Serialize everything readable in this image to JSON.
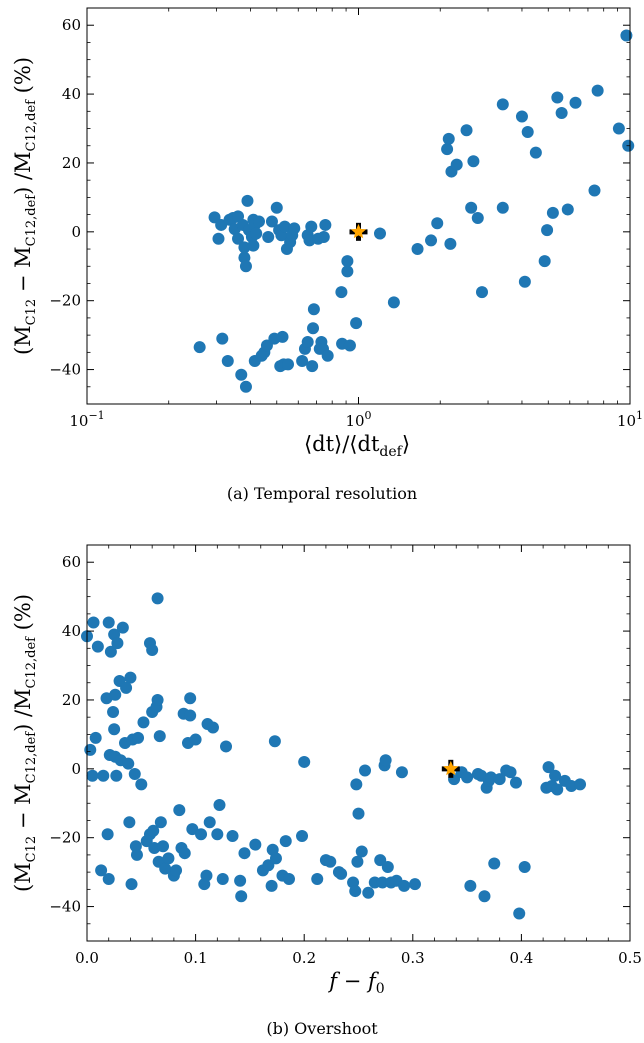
{
  "chart_data": [
    {
      "type": "scatter",
      "panel": "a",
      "caption": "(a) Temporal resolution",
      "xlabel": "⟨dt⟩/⟨dt_def⟩",
      "ylabel": "(M_C12 − M_C12,def) / M_C12,def (%)",
      "xscale": "log",
      "xlim": [
        0.1,
        10
      ],
      "ylim": [
        -50,
        65
      ],
      "xticks": [
        0.1,
        1,
        10
      ],
      "xtick_labels": [
        "10^−1",
        "10^0",
        "10^1"
      ],
      "yticks": [
        -40,
        -20,
        0,
        20,
        40,
        60
      ],
      "ytick_labels": [
        "−40",
        "−20",
        "0",
        "20",
        "40",
        "60"
      ],
      "grid": false,
      "marker_color": "#1f77b4",
      "reference_color": "#ffa500",
      "reference_point": {
        "x": 1.0,
        "y": 0
      },
      "series": [
        {
          "points": [
            [
              0.26,
              -33.5
            ],
            [
              0.295,
              4.2
            ],
            [
              0.305,
              -2.0
            ],
            [
              0.312,
              2.0
            ],
            [
              0.315,
              -31
            ],
            [
              0.33,
              -37.5
            ],
            [
              0.335,
              3.5
            ],
            [
              0.345,
              4.0
            ],
            [
              0.35,
              0.8
            ],
            [
              0.36,
              4.5
            ],
            [
              0.36,
              -2.0
            ],
            [
              0.37,
              -41.5
            ],
            [
              0.375,
              2.0
            ],
            [
              0.38,
              -7.5
            ],
            [
              0.38,
              -4.5
            ],
            [
              0.385,
              -10
            ],
            [
              0.385,
              -45
            ],
            [
              0.39,
              9.0
            ],
            [
              0.395,
              0.5
            ],
            [
              0.405,
              -1.5
            ],
            [
              0.41,
              -4.0
            ],
            [
              0.41,
              3.5
            ],
            [
              0.415,
              2.0
            ],
            [
              0.415,
              -37.5
            ],
            [
              0.42,
              -0.5
            ],
            [
              0.43,
              3.0
            ],
            [
              0.44,
              -36
            ],
            [
              0.45,
              -35
            ],
            [
              0.46,
              -33
            ],
            [
              0.465,
              -1.5
            ],
            [
              0.48,
              3.0
            ],
            [
              0.49,
              -31
            ],
            [
              0.5,
              7.0
            ],
            [
              0.51,
              0.5
            ],
            [
              0.515,
              -39
            ],
            [
              0.52,
              -1.0
            ],
            [
              0.525,
              -30.5
            ],
            [
              0.53,
              -38.5
            ],
            [
              0.535,
              1.5
            ],
            [
              0.545,
              -5
            ],
            [
              0.55,
              -38.5
            ],
            [
              0.56,
              -3.0
            ],
            [
              0.57,
              -1.0
            ],
            [
              0.58,
              1.0
            ],
            [
              0.62,
              -37.5
            ],
            [
              0.635,
              -34
            ],
            [
              0.65,
              -32
            ],
            [
              0.65,
              -1.0
            ],
            [
              0.66,
              -2.5
            ],
            [
              0.67,
              1.5
            ],
            [
              0.675,
              -39
            ],
            [
              0.68,
              -28
            ],
            [
              0.685,
              -22.5
            ],
            [
              0.71,
              -2.0
            ],
            [
              0.72,
              -34
            ],
            [
              0.73,
              -32
            ],
            [
              0.74,
              -34
            ],
            [
              0.745,
              -1.5
            ],
            [
              0.755,
              2.0
            ],
            [
              0.77,
              -36
            ],
            [
              0.865,
              -17.5
            ],
            [
              0.87,
              -32.5
            ],
            [
              0.91,
              -11.5
            ],
            [
              0.91,
              -8.5
            ],
            [
              0.93,
              -33
            ],
            [
              0.98,
              -26.5
            ],
            [
              1.2,
              -0.5
            ],
            [
              1.35,
              -20.5
            ],
            [
              1.65,
              -5
            ],
            [
              1.85,
              -2.5
            ],
            [
              1.95,
              2.5
            ],
            [
              2.12,
              24
            ],
            [
              2.15,
              27
            ],
            [
              2.18,
              -3.5
            ],
            [
              2.2,
              17.5
            ],
            [
              2.3,
              19.5
            ],
            [
              2.5,
              29.5
            ],
            [
              2.6,
              7.0
            ],
            [
              2.65,
              20.5
            ],
            [
              2.75,
              4.0
            ],
            [
              2.85,
              -17.5
            ],
            [
              3.4,
              37
            ],
            [
              3.4,
              7.0
            ],
            [
              4.0,
              33.5
            ],
            [
              4.1,
              -14.5
            ],
            [
              4.2,
              29
            ],
            [
              4.5,
              23
            ],
            [
              4.85,
              -8.5
            ],
            [
              4.95,
              0.5
            ],
            [
              5.2,
              5.5
            ],
            [
              5.4,
              39
            ],
            [
              5.6,
              34.5
            ],
            [
              5.9,
              6.5
            ],
            [
              6.3,
              37.5
            ],
            [
              7.4,
              12
            ],
            [
              7.6,
              41
            ],
            [
              9.1,
              30
            ],
            [
              9.7,
              57
            ],
            [
              9.85,
              25
            ]
          ]
        }
      ]
    },
    {
      "type": "scatter",
      "panel": "b",
      "caption": "(b) Overshoot",
      "xlabel": "f − f_0",
      "ylabel": "(M_C12 − M_C12,def) / M_C12,def (%)",
      "xscale": "linear",
      "xlim": [
        0.0,
        0.5
      ],
      "ylim": [
        -50,
        65
      ],
      "xticks": [
        0.0,
        0.1,
        0.2,
        0.3,
        0.4,
        0.5
      ],
      "xtick_labels": [
        "0.0",
        "0.1",
        "0.2",
        "0.3",
        "0.4",
        "0.5"
      ],
      "yticks": [
        -40,
        -20,
        0,
        20,
        40,
        60
      ],
      "ytick_labels": [
        "−40",
        "−20",
        "0",
        "20",
        "40",
        "60"
      ],
      "grid": false,
      "marker_color": "#1f77b4",
      "reference_color": "#ffa500",
      "reference_point": {
        "x": 0.335,
        "y": 0
      },
      "series": [
        {
          "points": [
            [
              0.0,
              38.5
            ],
            [
              0.003,
              5.5
            ],
            [
              0.005,
              -2
            ],
            [
              0.006,
              42.5
            ],
            [
              0.008,
              9.0
            ],
            [
              0.01,
              35.5
            ],
            [
              0.013,
              -29.5
            ],
            [
              0.015,
              -2
            ],
            [
              0.018,
              20.5
            ],
            [
              0.019,
              -19
            ],
            [
              0.02,
              42.5
            ],
            [
              0.02,
              -32
            ],
            [
              0.021,
              4
            ],
            [
              0.022,
              34
            ],
            [
              0.024,
              16.5
            ],
            [
              0.025,
              39
            ],
            [
              0.025,
              11.5
            ],
            [
              0.026,
              21.5
            ],
            [
              0.026,
              3.5
            ],
            [
              0.027,
              -2
            ],
            [
              0.028,
              36.5
            ],
            [
              0.03,
              25.5
            ],
            [
              0.031,
              2.5
            ],
            [
              0.033,
              41
            ],
            [
              0.035,
              7.5
            ],
            [
              0.036,
              23.5
            ],
            [
              0.038,
              1.5
            ],
            [
              0.039,
              -15.5
            ],
            [
              0.04,
              26.5
            ],
            [
              0.041,
              -33.5
            ],
            [
              0.042,
              8.5
            ],
            [
              0.044,
              -1.5
            ],
            [
              0.045,
              -22.5
            ],
            [
              0.046,
              -25
            ],
            [
              0.047,
              9.0
            ],
            [
              0.05,
              -4.5
            ],
            [
              0.052,
              13.5
            ],
            [
              0.055,
              -21
            ],
            [
              0.058,
              36.5
            ],
            [
              0.058,
              -19
            ],
            [
              0.06,
              34.5
            ],
            [
              0.06,
              16.5
            ],
            [
              0.061,
              -18
            ],
            [
              0.062,
              -23
            ],
            [
              0.064,
              18
            ],
            [
              0.065,
              20
            ],
            [
              0.065,
              49.5
            ],
            [
              0.066,
              -27
            ],
            [
              0.067,
              9.5
            ],
            [
              0.068,
              -15.5
            ],
            [
              0.07,
              -22.5
            ],
            [
              0.072,
              -29
            ],
            [
              0.075,
              -26
            ],
            [
              0.08,
              -31
            ],
            [
              0.082,
              -29.5
            ],
            [
              0.085,
              -12
            ],
            [
              0.087,
              -23
            ],
            [
              0.089,
              16
            ],
            [
              0.09,
              -24.5
            ],
            [
              0.093,
              7.5
            ],
            [
              0.095,
              15.5
            ],
            [
              0.095,
              20.5
            ],
            [
              0.097,
              -17.5
            ],
            [
              0.1,
              8.5
            ],
            [
              0.105,
              -19
            ],
            [
              0.108,
              -33.5
            ],
            [
              0.11,
              -31
            ],
            [
              0.111,
              13
            ],
            [
              0.113,
              -15.5
            ],
            [
              0.116,
              12
            ],
            [
              0.12,
              -19
            ],
            [
              0.122,
              -10.5
            ],
            [
              0.125,
              -32
            ],
            [
              0.128,
              6.5
            ],
            [
              0.134,
              -19.5
            ],
            [
              0.141,
              -32.5
            ],
            [
              0.142,
              -37
            ],
            [
              0.145,
              -24.5
            ],
            [
              0.155,
              -22
            ],
            [
              0.162,
              -29.5
            ],
            [
              0.167,
              -28
            ],
            [
              0.17,
              -34
            ],
            [
              0.171,
              -23.5
            ],
            [
              0.173,
              8
            ],
            [
              0.174,
              -26
            ],
            [
              0.18,
              -31
            ],
            [
              0.183,
              -21
            ],
            [
              0.186,
              -32
            ],
            [
              0.198,
              -19.5
            ],
            [
              0.2,
              2
            ],
            [
              0.212,
              -32
            ],
            [
              0.22,
              -26.5
            ],
            [
              0.224,
              -27
            ],
            [
              0.232,
              -30
            ],
            [
              0.234,
              -30.5
            ],
            [
              0.245,
              -33
            ],
            [
              0.247,
              -35.5
            ],
            [
              0.248,
              -4.5
            ],
            [
              0.249,
              -27
            ],
            [
              0.25,
              -13
            ],
            [
              0.253,
              -24
            ],
            [
              0.256,
              -0.5
            ],
            [
              0.259,
              -36
            ],
            [
              0.265,
              -33
            ],
            [
              0.27,
              -26.5
            ],
            [
              0.272,
              -33
            ],
            [
              0.274,
              1
            ],
            [
              0.275,
              2.5
            ],
            [
              0.277,
              -28.5
            ],
            [
              0.28,
              -33
            ],
            [
              0.285,
              -32.5
            ],
            [
              0.29,
              -1
            ],
            [
              0.292,
              -34
            ],
            [
              0.302,
              -33.5
            ],
            [
              0.338,
              -3
            ],
            [
              0.345,
              -1
            ],
            [
              0.35,
              -2.5
            ],
            [
              0.353,
              -34
            ],
            [
              0.36,
              -1.5
            ],
            [
              0.363,
              -2
            ],
            [
              0.366,
              -37
            ],
            [
              0.368,
              -5.5
            ],
            [
              0.37,
              -3.5
            ],
            [
              0.372,
              -2.5
            ],
            [
              0.375,
              -27.5
            ],
            [
              0.38,
              -3
            ],
            [
              0.386,
              -0.5
            ],
            [
              0.39,
              -1
            ],
            [
              0.395,
              -4
            ],
            [
              0.398,
              -42
            ],
            [
              0.403,
              -28.5
            ],
            [
              0.423,
              -5.5
            ],
            [
              0.425,
              0.5
            ],
            [
              0.428,
              -5
            ],
            [
              0.431,
              -2
            ],
            [
              0.433,
              -6
            ],
            [
              0.44,
              -3.5
            ],
            [
              0.446,
              -5
            ],
            [
              0.454,
              -4.5
            ]
          ]
        }
      ]
    }
  ]
}
